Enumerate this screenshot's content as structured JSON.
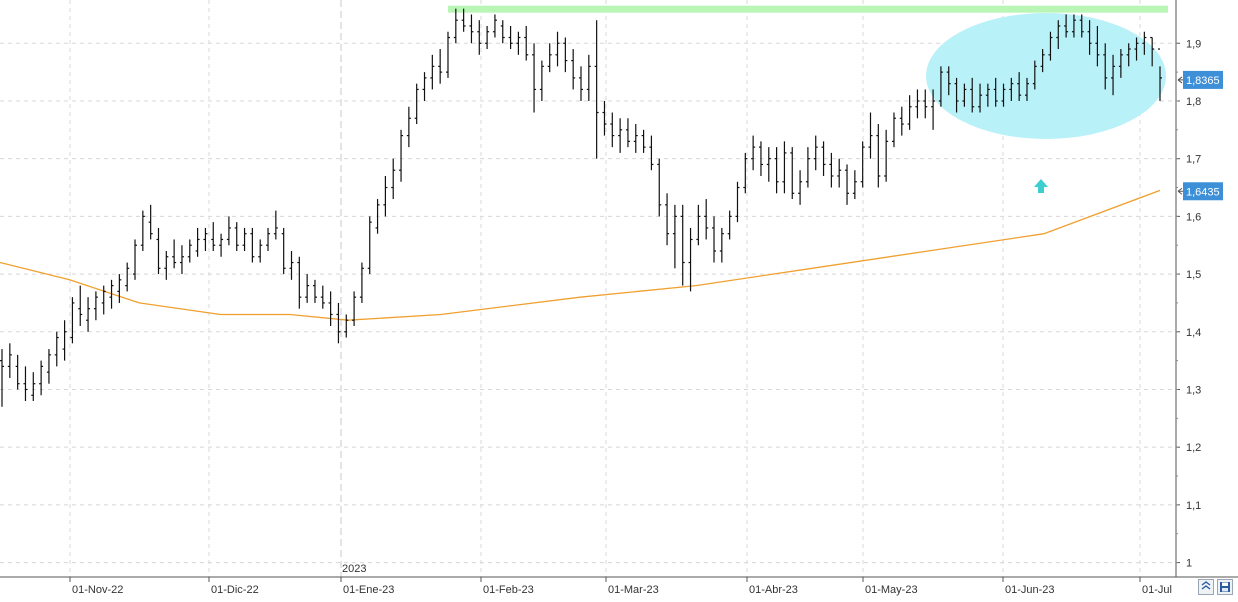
{
  "chart_data": {
    "type": "ohlc",
    "title": "",
    "xlabel": "",
    "ylabel": "",
    "ylim": [
      0.975,
      1.975
    ],
    "grid": true,
    "yticks": [
      "1",
      "1,1",
      "1,2",
      "1,3",
      "1,4",
      "1,5",
      "1,6",
      "1,7",
      "1,8",
      "1,9"
    ],
    "xticks": [
      "01-Nov-22",
      "01-Dic-22",
      "01-Ene-23",
      "01-Feb-23",
      "01-Mar-23",
      "01-Abr-23",
      "01-May-23",
      "01-Jun-23",
      "01-Jul"
    ],
    "year_marker": "2023",
    "price_tags": [
      "1,8365",
      "1,6435"
    ],
    "colors": {
      "bars": "#111111",
      "moving_average": "#f0a030",
      "resistance_band": "#b9f5b4",
      "highlight_ellipse": "#b8f1f8",
      "price_tag": "#3d8fd8",
      "arrow": "#3dcfcf"
    },
    "resistance_level": 1.96,
    "series": [
      {
        "type": "ohlc",
        "bars": [
          [
            1.35,
            1.37,
            1.27,
            1.34
          ],
          [
            1.34,
            1.38,
            1.32,
            1.36
          ],
          [
            1.34,
            1.36,
            1.3,
            1.31
          ],
          [
            1.31,
            1.34,
            1.28,
            1.3
          ],
          [
            1.29,
            1.33,
            1.28,
            1.31
          ],
          [
            1.31,
            1.35,
            1.29,
            1.34
          ],
          [
            1.33,
            1.37,
            1.31,
            1.36
          ],
          [
            1.36,
            1.4,
            1.34,
            1.39
          ],
          [
            1.37,
            1.42,
            1.35,
            1.4
          ],
          [
            1.39,
            1.46,
            1.38,
            1.45
          ],
          [
            1.44,
            1.48,
            1.41,
            1.43
          ],
          [
            1.42,
            1.46,
            1.4,
            1.44
          ],
          [
            1.44,
            1.47,
            1.42,
            1.46
          ],
          [
            1.45,
            1.48,
            1.43,
            1.47
          ],
          [
            1.46,
            1.49,
            1.44,
            1.48
          ],
          [
            1.47,
            1.5,
            1.45,
            1.49
          ],
          [
            1.48,
            1.52,
            1.47,
            1.51
          ],
          [
            1.5,
            1.56,
            1.49,
            1.55
          ],
          [
            1.55,
            1.61,
            1.54,
            1.6
          ],
          [
            1.59,
            1.62,
            1.56,
            1.57
          ],
          [
            1.56,
            1.58,
            1.5,
            1.51
          ],
          [
            1.51,
            1.54,
            1.49,
            1.53
          ],
          [
            1.53,
            1.56,
            1.51,
            1.52
          ],
          [
            1.52,
            1.55,
            1.5,
            1.53
          ],
          [
            1.53,
            1.56,
            1.52,
            1.55
          ],
          [
            1.54,
            1.58,
            1.53,
            1.56
          ],
          [
            1.56,
            1.58,
            1.54,
            1.57
          ],
          [
            1.56,
            1.59,
            1.54,
            1.55
          ],
          [
            1.55,
            1.57,
            1.53,
            1.56
          ],
          [
            1.56,
            1.6,
            1.55,
            1.58
          ],
          [
            1.58,
            1.59,
            1.54,
            1.55
          ],
          [
            1.55,
            1.58,
            1.54,
            1.57
          ],
          [
            1.57,
            1.58,
            1.52,
            1.53
          ],
          [
            1.53,
            1.56,
            1.52,
            1.55
          ],
          [
            1.55,
            1.58,
            1.54,
            1.57
          ],
          [
            1.57,
            1.61,
            1.56,
            1.58
          ],
          [
            1.57,
            1.58,
            1.5,
            1.51
          ],
          [
            1.51,
            1.54,
            1.49,
            1.52
          ],
          [
            1.52,
            1.53,
            1.44,
            1.46
          ],
          [
            1.46,
            1.5,
            1.45,
            1.48
          ],
          [
            1.48,
            1.49,
            1.45,
            1.46
          ],
          [
            1.46,
            1.48,
            1.44,
            1.45
          ],
          [
            1.45,
            1.47,
            1.41,
            1.43
          ],
          [
            1.43,
            1.45,
            1.38,
            1.4
          ],
          [
            1.4,
            1.43,
            1.39,
            1.42
          ],
          [
            1.42,
            1.47,
            1.41,
            1.46
          ],
          [
            1.46,
            1.52,
            1.45,
            1.51
          ],
          [
            1.51,
            1.6,
            1.5,
            1.59
          ],
          [
            1.58,
            1.63,
            1.57,
            1.62
          ],
          [
            1.62,
            1.67,
            1.6,
            1.65
          ],
          [
            1.65,
            1.7,
            1.63,
            1.68
          ],
          [
            1.68,
            1.75,
            1.66,
            1.74
          ],
          [
            1.74,
            1.79,
            1.72,
            1.77
          ],
          [
            1.77,
            1.83,
            1.76,
            1.82
          ],
          [
            1.82,
            1.85,
            1.8,
            1.84
          ],
          [
            1.84,
            1.88,
            1.82,
            1.86
          ],
          [
            1.86,
            1.89,
            1.83,
            1.85
          ],
          [
            1.85,
            1.92,
            1.84,
            1.91
          ],
          [
            1.91,
            1.96,
            1.9,
            1.94
          ],
          [
            1.94,
            1.96,
            1.92,
            1.93
          ],
          [
            1.93,
            1.95,
            1.9,
            1.92
          ],
          [
            1.92,
            1.94,
            1.88,
            1.9
          ],
          [
            1.9,
            1.93,
            1.89,
            1.92
          ],
          [
            1.92,
            1.95,
            1.91,
            1.94
          ],
          [
            1.93,
            1.94,
            1.9,
            1.91
          ],
          [
            1.91,
            1.93,
            1.89,
            1.9
          ],
          [
            1.9,
            1.92,
            1.88,
            1.91
          ],
          [
            1.91,
            1.93,
            1.87,
            1.88
          ],
          [
            1.88,
            1.9,
            1.78,
            1.82
          ],
          [
            1.82,
            1.87,
            1.8,
            1.86
          ],
          [
            1.86,
            1.9,
            1.85,
            1.88
          ],
          [
            1.88,
            1.92,
            1.86,
            1.9
          ],
          [
            1.9,
            1.91,
            1.85,
            1.87
          ],
          [
            1.87,
            1.89,
            1.82,
            1.84
          ],
          [
            1.84,
            1.86,
            1.8,
            1.82
          ],
          [
            1.82,
            1.88,
            1.8,
            1.86
          ],
          [
            1.86,
            1.94,
            1.7,
            1.78
          ],
          [
            1.78,
            1.8,
            1.74,
            1.76
          ],
          [
            1.76,
            1.78,
            1.72,
            1.74
          ],
          [
            1.74,
            1.77,
            1.71,
            1.75
          ],
          [
            1.75,
            1.77,
            1.72,
            1.73
          ],
          [
            1.73,
            1.76,
            1.71,
            1.74
          ],
          [
            1.74,
            1.75,
            1.71,
            1.72
          ],
          [
            1.72,
            1.74,
            1.68,
            1.69
          ],
          [
            1.69,
            1.7,
            1.6,
            1.62
          ],
          [
            1.62,
            1.64,
            1.55,
            1.57
          ],
          [
            1.57,
            1.62,
            1.51,
            1.6
          ],
          [
            1.6,
            1.62,
            1.48,
            1.52
          ],
          [
            1.52,
            1.58,
            1.47,
            1.56
          ],
          [
            1.56,
            1.62,
            1.55,
            1.6
          ],
          [
            1.6,
            1.63,
            1.56,
            1.58
          ],
          [
            1.58,
            1.6,
            1.52,
            1.54
          ],
          [
            1.54,
            1.58,
            1.52,
            1.57
          ],
          [
            1.57,
            1.61,
            1.56,
            1.6
          ],
          [
            1.6,
            1.66,
            1.59,
            1.65
          ],
          [
            1.65,
            1.71,
            1.64,
            1.7
          ],
          [
            1.7,
            1.74,
            1.68,
            1.72
          ],
          [
            1.72,
            1.73,
            1.67,
            1.69
          ],
          [
            1.69,
            1.72,
            1.66,
            1.7
          ],
          [
            1.7,
            1.72,
            1.64,
            1.66
          ],
          [
            1.66,
            1.73,
            1.64,
            1.71
          ],
          [
            1.71,
            1.72,
            1.63,
            1.64
          ],
          [
            1.64,
            1.68,
            1.62,
            1.66
          ],
          [
            1.66,
            1.72,
            1.65,
            1.7
          ],
          [
            1.7,
            1.74,
            1.68,
            1.72
          ],
          [
            1.72,
            1.73,
            1.67,
            1.69
          ],
          [
            1.69,
            1.71,
            1.65,
            1.67
          ],
          [
            1.67,
            1.7,
            1.65,
            1.68
          ],
          [
            1.68,
            1.69,
            1.62,
            1.64
          ],
          [
            1.64,
            1.68,
            1.63,
            1.66
          ],
          [
            1.66,
            1.73,
            1.65,
            1.72
          ],
          [
            1.72,
            1.78,
            1.7,
            1.74
          ],
          [
            1.74,
            1.76,
            1.65,
            1.67
          ],
          [
            1.67,
            1.75,
            1.66,
            1.73
          ],
          [
            1.73,
            1.78,
            1.72,
            1.77
          ],
          [
            1.77,
            1.79,
            1.74,
            1.76
          ],
          [
            1.76,
            1.81,
            1.75,
            1.79
          ],
          [
            1.79,
            1.82,
            1.77,
            1.8
          ],
          [
            1.8,
            1.82,
            1.77,
            1.79
          ],
          [
            1.79,
            1.82,
            1.75,
            1.8
          ],
          [
            1.8,
            1.86,
            1.79,
            1.85
          ],
          [
            1.85,
            1.86,
            1.81,
            1.83
          ],
          [
            1.83,
            1.84,
            1.78,
            1.8
          ],
          [
            1.8,
            1.83,
            1.79,
            1.82
          ],
          [
            1.82,
            1.84,
            1.78,
            1.79
          ],
          [
            1.79,
            1.83,
            1.78,
            1.81
          ],
          [
            1.81,
            1.83,
            1.79,
            1.82
          ],
          [
            1.82,
            1.84,
            1.79,
            1.8
          ],
          [
            1.8,
            1.83,
            1.79,
            1.82
          ],
          [
            1.82,
            1.84,
            1.8,
            1.83
          ],
          [
            1.83,
            1.85,
            1.8,
            1.81
          ],
          [
            1.81,
            1.84,
            1.8,
            1.83
          ],
          [
            1.83,
            1.87,
            1.82,
            1.86
          ],
          [
            1.86,
            1.89,
            1.85,
            1.88
          ],
          [
            1.88,
            1.92,
            1.87,
            1.91
          ],
          [
            1.91,
            1.94,
            1.89,
            1.93
          ],
          [
            1.93,
            1.95,
            1.91,
            1.92
          ],
          [
            1.92,
            1.95,
            1.91,
            1.94
          ],
          [
            1.94,
            1.95,
            1.91,
            1.92
          ],
          [
            1.92,
            1.94,
            1.88,
            1.9
          ],
          [
            1.9,
            1.93,
            1.86,
            1.88
          ],
          [
            1.88,
            1.9,
            1.82,
            1.84
          ],
          [
            1.84,
            1.88,
            1.81,
            1.86
          ],
          [
            1.86,
            1.89,
            1.84,
            1.88
          ],
          [
            1.88,
            1.9,
            1.86,
            1.89
          ],
          [
            1.89,
            1.91,
            1.87,
            1.9
          ],
          [
            1.9,
            1.92,
            1.88,
            1.91
          ],
          [
            1.91,
            1.91,
            1.86,
            1.89
          ],
          [
            1.89,
            1.86,
            1.8,
            1.84
          ]
        ]
      },
      {
        "type": "line",
        "x": [
          0,
          0.06,
          0.12,
          0.19,
          0.25,
          0.3,
          0.38,
          0.5,
          0.6,
          0.7,
          0.8,
          0.9,
          1.0
        ],
        "values": [
          1.52,
          1.49,
          1.45,
          1.43,
          1.43,
          1.42,
          1.43,
          1.46,
          1.48,
          1.51,
          1.54,
          1.57,
          1.645
        ]
      }
    ]
  }
}
